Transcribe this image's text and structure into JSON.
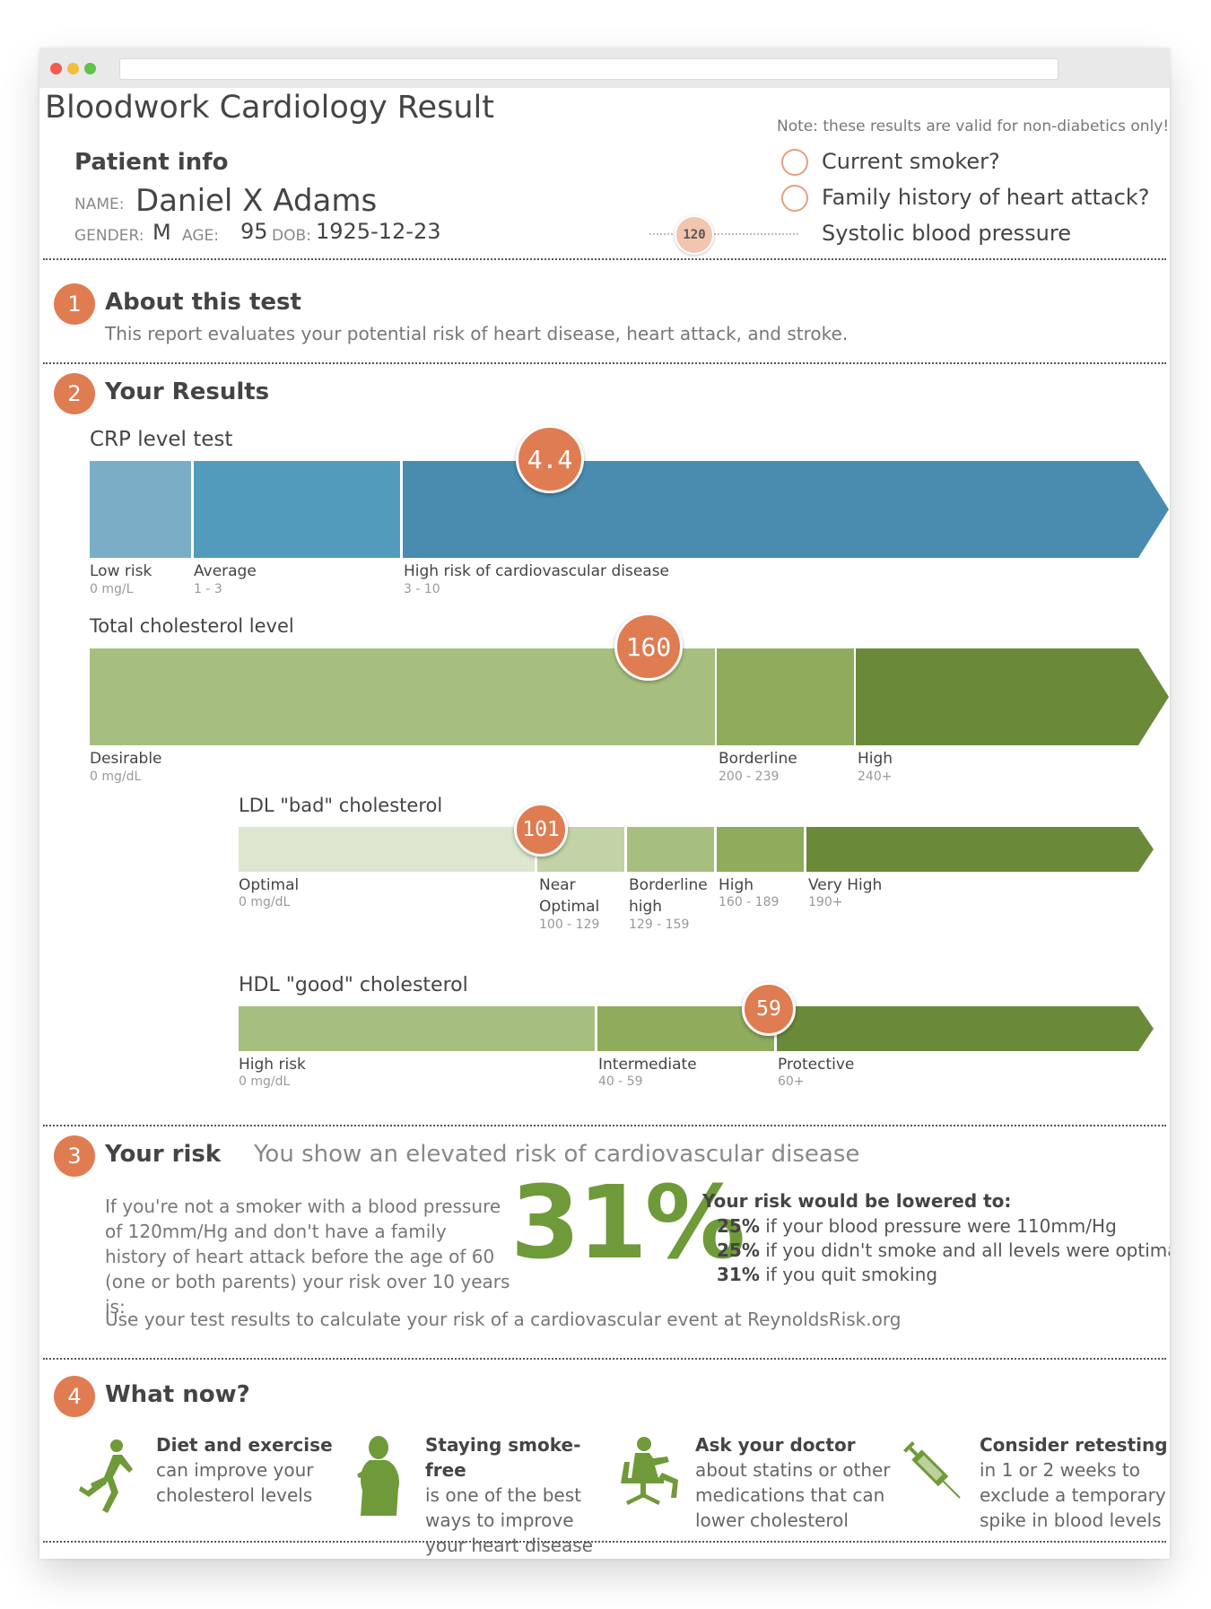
{
  "header": {
    "title": "Bloodwork Cardiology Result",
    "note": "Note: these results are valid for non-diabetics only!"
  },
  "patient": {
    "heading": "Patient info",
    "name_label": "NAME:",
    "name": "Daniel X Adams",
    "gender_label": "GENDER:",
    "gender": "M",
    "age_label": "AGE:",
    "age": "95",
    "dob_label": "DOB:",
    "dob": "1925-12-23"
  },
  "risk_factors": {
    "smoker_label": "Current smoker?",
    "family_label": "Family history of heart attack?",
    "bp_label": "Systolic blood pressure",
    "bp_value": "120"
  },
  "sections": {
    "s1": {
      "num": "1",
      "title": "About this test",
      "body": "This report evaluates your potential risk of heart disease, heart attack, and stroke."
    },
    "s2": {
      "num": "2",
      "title": "Your Results"
    },
    "s3": {
      "num": "3",
      "title": "Your risk",
      "headline": "You show an elevated risk of cardiovascular disease"
    },
    "s4": {
      "num": "4",
      "title": "What now?"
    }
  },
  "crp": {
    "title": "CRP level test",
    "value": "4.4",
    "zones": [
      {
        "label": "Low risk",
        "range": "0 mg/L"
      },
      {
        "label": "Average",
        "range": "1 - 3"
      },
      {
        "label": "High risk of cardiovascular disease",
        "range": "3 - 10"
      }
    ]
  },
  "total_chol": {
    "title": "Total cholesterol level",
    "value": "160",
    "zones": [
      {
        "label": "Desirable",
        "range": "0 mg/dL"
      },
      {
        "label": "Borderline",
        "range": "200 - 239"
      },
      {
        "label": "High",
        "range": "240+"
      }
    ]
  },
  "ldl": {
    "title": "LDL \"bad\" cholesterol",
    "value": "101",
    "zones": [
      {
        "label": "Optimal",
        "range": "0 mg/dL"
      },
      {
        "label": "Near Optimal",
        "range": "100 - 129"
      },
      {
        "label": "Borderline high",
        "range": "129 - 159"
      },
      {
        "label": "High",
        "range": "160 - 189"
      },
      {
        "label": "Very High",
        "range": "190+"
      }
    ]
  },
  "hdl": {
    "title": "HDL \"good\" cholesterol",
    "value": "59",
    "zones": [
      {
        "label": "High risk",
        "range": "0 mg/dL"
      },
      {
        "label": "Intermediate",
        "range": "40 - 59"
      },
      {
        "label": "Protective",
        "range": "60+"
      }
    ]
  },
  "risk": {
    "explain": "If you're not a smoker with a blood pressure of 120mm/Hg and don't have a family history of heart attack before the age of 60 (one or both parents) your risk over 10 years is:",
    "percent": "31%",
    "lowered_heading": "Your risk would be lowered to:",
    "lowered": [
      {
        "pct": "25%",
        "text": "if your blood pressure were 110mm/Hg"
      },
      {
        "pct": "25%",
        "text": "if you didn't smoke and all levels were optimal"
      },
      {
        "pct": "31%",
        "text": "if you quit smoking"
      }
    ],
    "footer": "Use your test results to calculate your risk of a cardiovascular event at ReynoldsRisk.org"
  },
  "tips": [
    {
      "title": "Diet and exercise",
      "body": "can improve your cholesterol levels",
      "icon": "runner-icon"
    },
    {
      "title": "Staying smoke-free",
      "body": "is one of the best ways to improve your heart disease risk",
      "icon": "person-icon"
    },
    {
      "title": "Ask your doctor",
      "body": "about statins or other medications that can lower cholesterol",
      "icon": "doctor-chair-icon"
    },
    {
      "title": "Consider retesting",
      "body": "in 1 or 2 weeks to exclude a temporary spike in blood levels",
      "icon": "syringe-icon"
    }
  ],
  "colors": {
    "accent": "#e07c52",
    "crp": [
      "#7aaec7",
      "#539bbc",
      "#498cb0"
    ],
    "green": [
      "#a7bf7e",
      "#8fab5c",
      "#6a8a3a"
    ],
    "ldl": [
      "#dde6cf",
      "#c2d3a7",
      "#a7bf7e",
      "#8fab5c",
      "#6a8a3a"
    ],
    "risk_green": "#6f9a3a"
  }
}
